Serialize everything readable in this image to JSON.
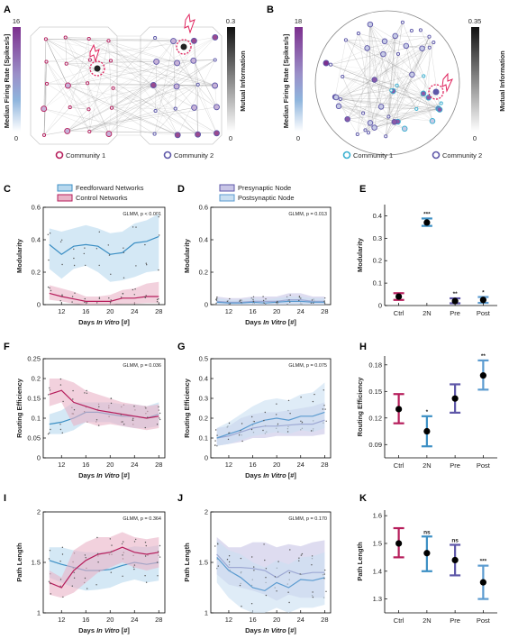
{
  "panels": {
    "A": "A",
    "B": "B",
    "C": "C",
    "D": "D",
    "E": "E",
    "F": "F",
    "G": "G",
    "H": "H",
    "I": "I",
    "J": "J",
    "K": "K"
  },
  "colors": {
    "ff": "#3c8fc4",
    "ff_fill": "#b8d8ee",
    "ctrl": "#b61d5b",
    "ctrl_fill": "#e9b3c7",
    "pre": "#5e57a8",
    "pre_fill": "#c8c5e6",
    "post": "#5b9bd0",
    "post_fill": "#c9dff1",
    "purple": "#7c2f8e"
  },
  "netA": {
    "firing_label": "Median Firing Rate [Spikes/s]",
    "firing_max": "16",
    "firing_min": "0",
    "mi_label": "Mutual Information",
    "mi_max": "0.3",
    "mi_min": "0",
    "community1": "Community 1",
    "community2": "Community 2"
  },
  "netB": {
    "firing_label": "Median Firing Rate [Spikes/s]",
    "firing_max": "18",
    "firing_min": "0",
    "mi_label": "Mutual Information",
    "mi_max": "0.35",
    "mi_min": "0",
    "community1": "Community 1",
    "community2": "Community 2"
  },
  "chart_data": [
    {
      "panel": "C",
      "type": "line",
      "xlabel_pre": "Days ",
      "xlabel_it": "In Vitro",
      "xlabel_post": " [#]",
      "ylabel": "Modularity",
      "x": [
        10,
        12,
        14,
        16,
        18,
        20,
        22,
        24,
        26,
        28
      ],
      "xticks": [
        12,
        16,
        20,
        24,
        28
      ],
      "ylim": [
        0,
        0.6
      ],
      "yticks": [
        0,
        0.2,
        0.4,
        0.6
      ],
      "ytick_labels": [
        "0",
        "0.2",
        "0.4",
        "0.6"
      ],
      "annotation": "GLMM, p < 0.001",
      "legend": [
        "Feedforward Networks",
        "Control Networks"
      ],
      "series": [
        {
          "name": "Feedforward Networks",
          "color": "ff",
          "values": [
            0.37,
            0.31,
            0.36,
            0.37,
            0.36,
            0.31,
            0.32,
            0.38,
            0.39,
            0.42
          ],
          "lower": [
            0.22,
            0.16,
            0.22,
            0.24,
            0.2,
            0.14,
            0.15,
            0.17,
            0.2,
            0.21
          ],
          "upper": [
            0.47,
            0.45,
            0.47,
            0.49,
            0.47,
            0.44,
            0.45,
            0.5,
            0.52,
            0.56
          ]
        },
        {
          "name": "Control Networks",
          "color": "ctrl",
          "values": [
            0.07,
            0.05,
            0.035,
            0.02,
            0.02,
            0.02,
            0.04,
            0.04,
            0.05,
            0.05
          ],
          "lower": [
            0.03,
            0.02,
            0.005,
            0,
            0,
            0,
            0.005,
            0.005,
            0.01,
            0.01
          ],
          "upper": [
            0.12,
            0.1,
            0.08,
            0.05,
            0.05,
            0.06,
            0.09,
            0.1,
            0.13,
            0.14
          ]
        }
      ]
    },
    {
      "panel": "D",
      "type": "line",
      "xlabel_pre": "Days ",
      "xlabel_it": "In Vitro",
      "xlabel_post": " [#]",
      "ylabel": "Modularity",
      "x": [
        10,
        12,
        14,
        16,
        18,
        20,
        22,
        24,
        26,
        28
      ],
      "xticks": [
        12,
        16,
        20,
        24,
        28
      ],
      "ylim": [
        0,
        0.6
      ],
      "yticks": [
        0,
        0.2,
        0.4,
        0.6
      ],
      "ytick_labels": [
        "0",
        "0.2",
        "0.4",
        "0.6"
      ],
      "annotation": "GLMM, p = 0.013",
      "legend": [
        "Presynaptic Node",
        "Postsynaptic Node"
      ],
      "series": [
        {
          "name": "Presynaptic Node",
          "color": "pre",
          "values": [
            0.02,
            0.015,
            0.015,
            0.02,
            0.02,
            0.02,
            0.03,
            0.03,
            0.02,
            0.02
          ],
          "lower": [
            0,
            0,
            0,
            0,
            0,
            0,
            0,
            0,
            0,
            0
          ],
          "upper": [
            0.05,
            0.04,
            0.04,
            0.05,
            0.05,
            0.05,
            0.07,
            0.07,
            0.05,
            0.05
          ]
        },
        {
          "name": "Postsynaptic Node",
          "color": "post",
          "values": [
            0.015,
            0.01,
            0.01,
            0.015,
            0.01,
            0.015,
            0.02,
            0.02,
            0.015,
            0.015
          ],
          "lower": [
            0,
            0,
            0,
            0,
            0,
            0,
            0,
            0,
            0,
            0
          ],
          "upper": [
            0.04,
            0.03,
            0.03,
            0.04,
            0.03,
            0.04,
            0.05,
            0.05,
            0.04,
            0.04
          ]
        }
      ]
    },
    {
      "panel": "E",
      "type": "errorbar",
      "ylabel": "Modularity",
      "categories": [
        "Ctrl",
        "2N",
        "Pre",
        "Post"
      ],
      "ylim": [
        0,
        0.45
      ],
      "yticks": [
        0,
        0.1,
        0.2,
        0.3,
        0.4
      ],
      "ytick_labels": [
        "0",
        "0.1",
        "0.2",
        "0.3",
        "0.4"
      ],
      "values": [
        0.04,
        0.37,
        0.02,
        0.025
      ],
      "lower": [
        0.025,
        0.355,
        0.01,
        0.012
      ],
      "upper": [
        0.055,
        0.388,
        0.032,
        0.038
      ],
      "colors": [
        "ctrl",
        "ff",
        "pre",
        "post"
      ],
      "stars": [
        "",
        "***",
        "**",
        "*"
      ]
    },
    {
      "panel": "F",
      "type": "line",
      "xlabel_pre": "Days ",
      "xlabel_it": "In Vitro",
      "xlabel_post": " [#]",
      "ylabel": "Routing Efficiency",
      "x": [
        10,
        12,
        14,
        16,
        18,
        20,
        22,
        24,
        26,
        28
      ],
      "xticks": [
        12,
        16,
        20,
        24,
        28
      ],
      "ylim": [
        0,
        0.25
      ],
      "yticks": [
        0,
        0.05,
        0.1,
        0.15,
        0.2,
        0.25
      ],
      "ytick_labels": [
        "0",
        "0.05",
        "0.1",
        "0.15",
        "0.2",
        "0.25"
      ],
      "annotation": "GLMM, p = 0.036",
      "series": [
        {
          "name": "Feedforward Networks",
          "color": "ff",
          "values": [
            0.085,
            0.09,
            0.1,
            0.115,
            0.115,
            0.11,
            0.105,
            0.105,
            0.1,
            0.11
          ],
          "lower": [
            0.06,
            0.06,
            0.07,
            0.09,
            0.09,
            0.09,
            0.08,
            0.075,
            0.075,
            0.08
          ],
          "upper": [
            0.11,
            0.12,
            0.14,
            0.14,
            0.14,
            0.14,
            0.135,
            0.135,
            0.13,
            0.14
          ]
        },
        {
          "name": "Control Networks",
          "color": "ctrl",
          "values": [
            0.16,
            0.17,
            0.14,
            0.13,
            0.12,
            0.115,
            0.11,
            0.105,
            0.1,
            0.105
          ],
          "lower": [
            0.13,
            0.14,
            0.08,
            0.09,
            0.08,
            0.085,
            0.08,
            0.075,
            0.07,
            0.075
          ],
          "upper": [
            0.2,
            0.2,
            0.19,
            0.17,
            0.16,
            0.15,
            0.14,
            0.135,
            0.13,
            0.135
          ]
        }
      ]
    },
    {
      "panel": "G",
      "type": "line",
      "xlabel_pre": "Days ",
      "xlabel_it": "In Vitro",
      "xlabel_post": " [#]",
      "ylabel": "Routing Efficiency",
      "x": [
        10,
        12,
        14,
        16,
        18,
        20,
        22,
        24,
        26,
        28
      ],
      "xticks": [
        12,
        16,
        20,
        24,
        28
      ],
      "ylim": [
        0,
        0.5
      ],
      "yticks": [
        0,
        0.1,
        0.2,
        0.3,
        0.4,
        0.5
      ],
      "ytick_labels": [
        "0",
        "0.1",
        "0.2",
        "0.3",
        "0.4",
        "0.5"
      ],
      "annotation": "GLMM, p = 0.075",
      "series": [
        {
          "name": "Presynaptic Node",
          "color": "pre",
          "values": [
            0.1,
            0.11,
            0.13,
            0.15,
            0.16,
            0.16,
            0.165,
            0.17,
            0.17,
            0.19
          ],
          "lower": [
            0.06,
            0.07,
            0.08,
            0.1,
            0.1,
            0.11,
            0.11,
            0.11,
            0.11,
            0.12
          ],
          "upper": [
            0.15,
            0.16,
            0.2,
            0.22,
            0.23,
            0.23,
            0.24,
            0.25,
            0.26,
            0.28
          ]
        },
        {
          "name": "Postsynaptic Node",
          "color": "post",
          "values": [
            0.1,
            0.12,
            0.14,
            0.17,
            0.19,
            0.2,
            0.19,
            0.21,
            0.21,
            0.23
          ],
          "lower": [
            0.06,
            0.07,
            0.09,
            0.11,
            0.12,
            0.13,
            0.12,
            0.14,
            0.13,
            0.15
          ],
          "upper": [
            0.15,
            0.18,
            0.22,
            0.26,
            0.29,
            0.3,
            0.29,
            0.32,
            0.33,
            0.38
          ]
        }
      ]
    },
    {
      "panel": "H",
      "type": "errorbar",
      "ylabel": "Routing Efficiency",
      "categories": [
        "Ctrl",
        "2N",
        "Pre",
        "Post"
      ],
      "ylim": [
        0.075,
        0.19
      ],
      "yticks": [
        0.09,
        0.12,
        0.15,
        0.18
      ],
      "ytick_labels": [
        "0.09",
        "0.12",
        "0.15",
        "0.18"
      ],
      "values": [
        0.13,
        0.105,
        0.142,
        0.168
      ],
      "lower": [
        0.114,
        0.088,
        0.126,
        0.152
      ],
      "upper": [
        0.147,
        0.122,
        0.158,
        0.185
      ],
      "colors": [
        "ctrl",
        "ff",
        "pre",
        "post"
      ],
      "stars": [
        "",
        "*",
        "",
        "**"
      ]
    },
    {
      "panel": "I",
      "type": "line",
      "xlabel_pre": "Days ",
      "xlabel_it": "In Vitro",
      "xlabel_post": " [#]",
      "ylabel": "Path Length",
      "x": [
        10,
        12,
        14,
        16,
        18,
        20,
        22,
        24,
        26,
        28
      ],
      "xticks": [
        12,
        16,
        20,
        24,
        28
      ],
      "ylim": [
        1,
        2
      ],
      "yticks": [
        1,
        1.5,
        2
      ],
      "ytick_labels": [
        "1",
        "1.5",
        "2"
      ],
      "annotation": "GLMM, p = 0.364",
      "series": [
        {
          "name": "Feedforward Networks",
          "color": "ff",
          "values": [
            1.52,
            1.48,
            1.45,
            1.42,
            1.42,
            1.43,
            1.47,
            1.5,
            1.48,
            1.5
          ],
          "lower": [
            1.35,
            1.3,
            1.25,
            1.22,
            1.23,
            1.25,
            1.3,
            1.33,
            1.3,
            1.32
          ],
          "upper": [
            1.65,
            1.65,
            1.62,
            1.6,
            1.6,
            1.62,
            1.63,
            1.66,
            1.65,
            1.67
          ]
        },
        {
          "name": "Control Networks",
          "color": "ctrl",
          "values": [
            1.3,
            1.25,
            1.42,
            1.52,
            1.58,
            1.6,
            1.65,
            1.6,
            1.58,
            1.6
          ],
          "lower": [
            1.18,
            1.15,
            1.2,
            1.3,
            1.4,
            1.45,
            1.5,
            1.45,
            1.42,
            1.45
          ],
          "upper": [
            1.42,
            1.35,
            1.62,
            1.7,
            1.75,
            1.75,
            1.8,
            1.75,
            1.73,
            1.75
          ]
        }
      ]
    },
    {
      "panel": "J",
      "type": "line",
      "xlabel_pre": "Days ",
      "xlabel_it": "In Vitro",
      "xlabel_post": " [#]",
      "ylabel": "Path Length",
      "x": [
        10,
        12,
        14,
        16,
        18,
        20,
        22,
        24,
        26,
        28
      ],
      "xticks": [
        12,
        16,
        20,
        24,
        28
      ],
      "ylim": [
        1,
        2
      ],
      "yticks": [
        1,
        1.5,
        2
      ],
      "ytick_labels": [
        "1",
        "1.5",
        "2"
      ],
      "annotation": "GLMM, p = 0.170",
      "series": [
        {
          "name": "Presynaptic Node",
          "color": "pre",
          "values": [
            1.58,
            1.45,
            1.45,
            1.44,
            1.42,
            1.35,
            1.42,
            1.38,
            1.4,
            1.4
          ],
          "lower": [
            1.38,
            1.28,
            1.25,
            1.22,
            1.18,
            1.12,
            1.18,
            1.15,
            1.15,
            1.15
          ],
          "upper": [
            1.75,
            1.65,
            1.65,
            1.7,
            1.7,
            1.65,
            1.68,
            1.66,
            1.7,
            1.72
          ]
        },
        {
          "name": "Postsynaptic Node",
          "color": "post",
          "values": [
            1.55,
            1.42,
            1.35,
            1.25,
            1.22,
            1.3,
            1.25,
            1.33,
            1.32,
            1.35
          ],
          "lower": [
            1.3,
            1.15,
            1.05,
            1.0,
            1.0,
            1.05,
            1.0,
            1.05,
            1.05,
            1.08
          ],
          "upper": [
            1.72,
            1.62,
            1.58,
            1.5,
            1.45,
            1.52,
            1.48,
            1.55,
            1.56,
            1.6
          ]
        }
      ]
    },
    {
      "panel": "K",
      "type": "errorbar",
      "ylabel": "Path Length",
      "categories": [
        "Ctrl",
        "2N",
        "Pre",
        "Post"
      ],
      "ylim": [
        1.25,
        1.62
      ],
      "yticks": [
        1.3,
        1.4,
        1.5,
        1.6
      ],
      "ytick_labels": [
        "1.3",
        "1.4",
        "1.5",
        "1.6"
      ],
      "values": [
        1.5,
        1.465,
        1.44,
        1.36
      ],
      "lower": [
        1.45,
        1.4,
        1.385,
        1.3
      ],
      "upper": [
        1.555,
        1.525,
        1.495,
        1.42
      ],
      "colors": [
        "ctrl",
        "ff",
        "pre",
        "post"
      ],
      "stars": [
        "",
        "ns",
        "ns",
        "***"
      ]
    }
  ]
}
